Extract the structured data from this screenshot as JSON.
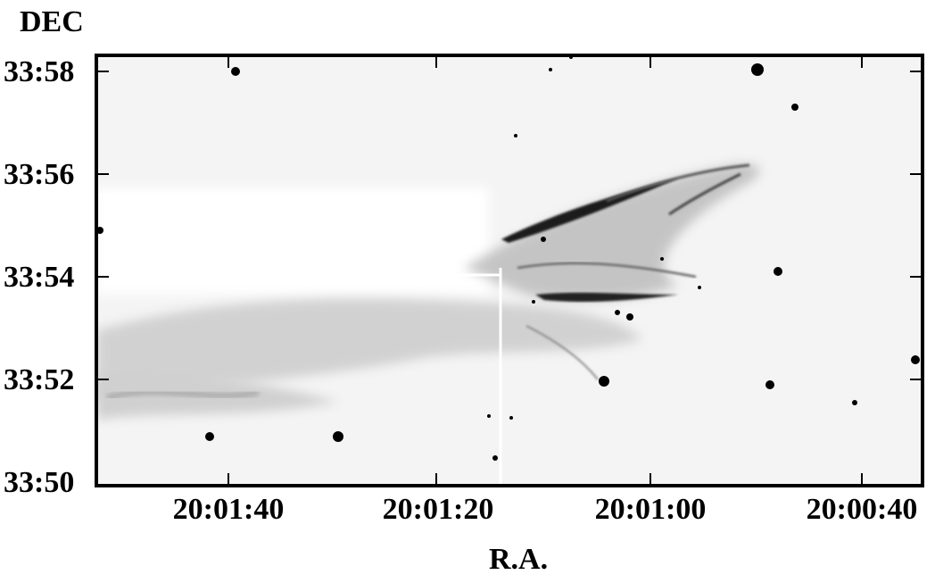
{
  "figure": {
    "y_axis_title": "DEC",
    "x_axis_title": "R.A.",
    "y_ticks": [
      "33:58",
      "33:56",
      "33:54",
      "33:52",
      "33:50"
    ],
    "x_ticks": [
      "20:01:40",
      "20:01:20",
      "20:01:00",
      "20:00:40"
    ],
    "image_description_colors": {
      "frame": "#000000",
      "background": "#ffffff",
      "nebula": "#1a1a1a"
    }
  }
}
